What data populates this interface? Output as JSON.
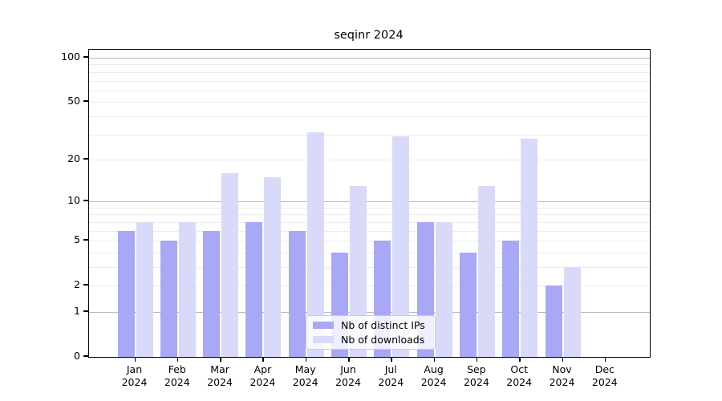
{
  "chart_data": {
    "type": "bar",
    "title": "seqinr 2024",
    "categories": [
      "Jan",
      "Feb",
      "Mar",
      "Apr",
      "May",
      "Jun",
      "Jul",
      "Aug",
      "Sep",
      "Oct",
      "Nov",
      "Dec"
    ],
    "x_tick_second_line": "2024",
    "series": [
      {
        "name": "Nb of distinct IPs",
        "color": "#a8a8f7",
        "values": [
          6,
          5,
          6,
          7,
          6,
          4,
          5,
          7,
          4,
          5,
          2,
          0
        ]
      },
      {
        "name": "Nb of downloads",
        "color": "#d9d9fa",
        "values": [
          7,
          7,
          16,
          15,
          31,
          13,
          29,
          7,
          13,
          28,
          3,
          0
        ]
      }
    ],
    "y_scale": "log1p",
    "y_tick_labels": [
      "100",
      "50",
      "20",
      "10",
      "5",
      "2",
      "1",
      "0"
    ],
    "y_tick_values": [
      100,
      50,
      20,
      10,
      5,
      2,
      1,
      0
    ],
    "ylim": [
      0,
      113
    ],
    "grid": "on",
    "legend_position": "bottom-center",
    "colors": {
      "axis": "#000000",
      "grid_major": "#b8b8b8",
      "grid_minor": "#ececec",
      "legend_border": "#cccccc",
      "background": "#ffffff"
    }
  }
}
